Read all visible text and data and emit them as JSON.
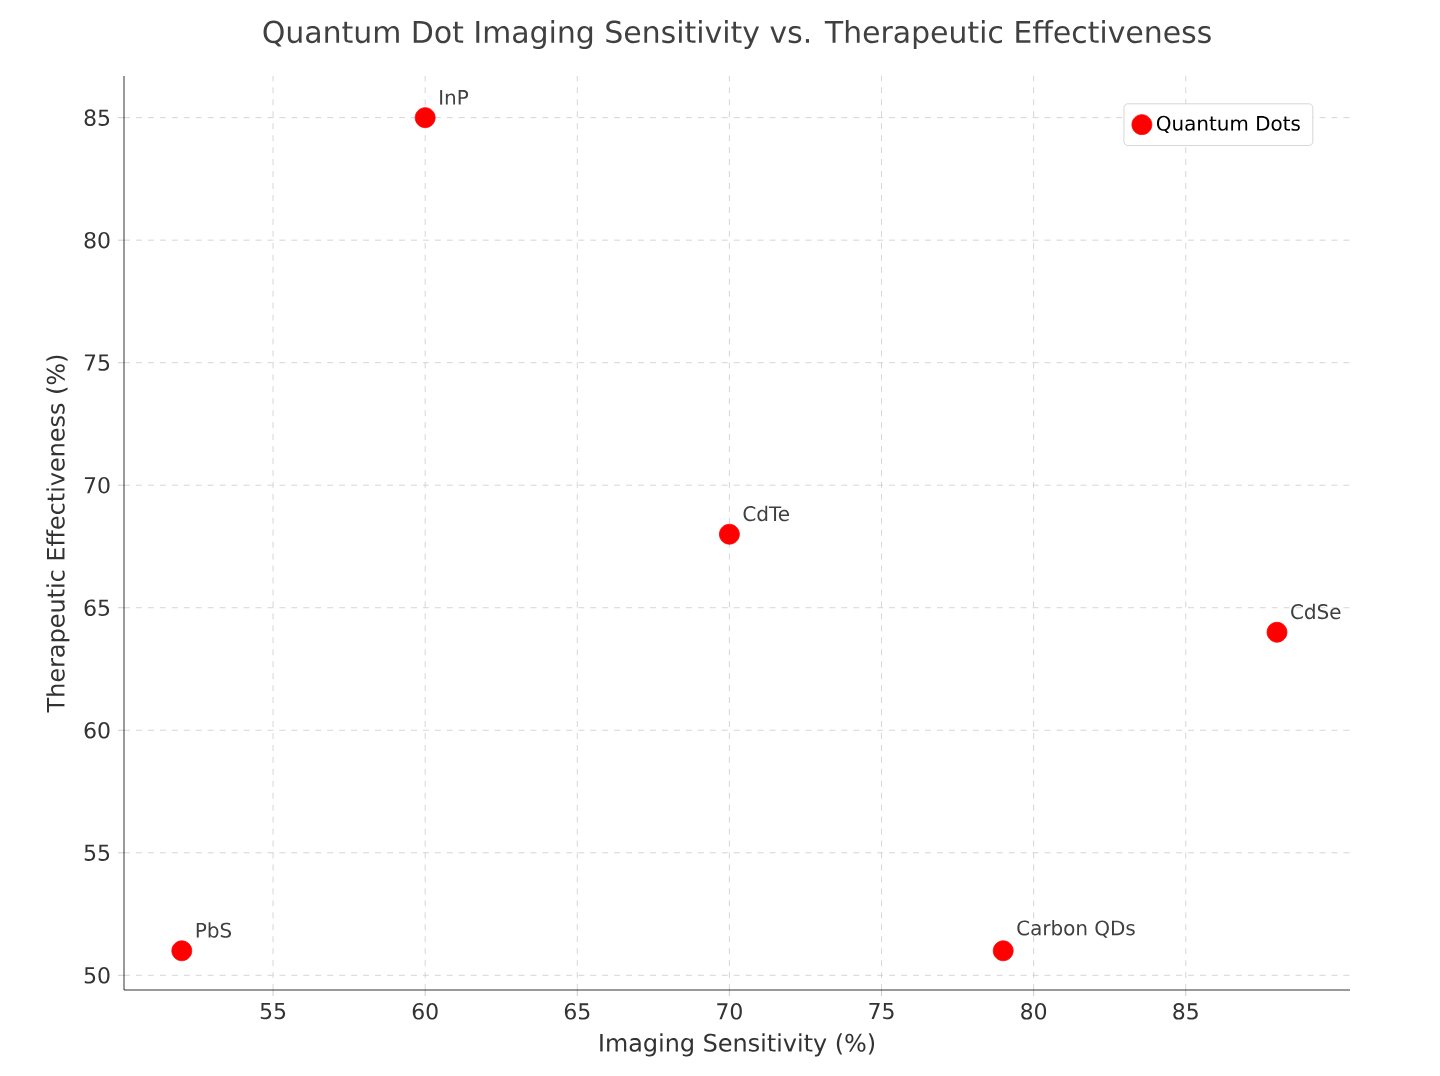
{
  "chart_data": {
    "type": "scatter",
    "title": "Quantum Dot Imaging Sensitivity vs. Therapeutic Effectiveness",
    "xlabel": "Imaging Sensitivity (%)",
    "ylabel": "Therapeutic Effectiveness (%)",
    "series": [
      {
        "name": "Quantum Dots",
        "color": "#ff0000",
        "x": [
          52,
          60,
          70,
          79,
          88
        ],
        "values": [
          51,
          85,
          68,
          51,
          64
        ]
      }
    ],
    "annotations": [
      {
        "text": "PbS",
        "x": 52,
        "y": 51
      },
      {
        "text": "InP",
        "x": 60,
        "y": 85
      },
      {
        "text": "CdTe",
        "x": 70,
        "y": 68
      },
      {
        "text": "Carbon QDs",
        "x": 79,
        "y": 51
      },
      {
        "text": "CdSe",
        "x": 88,
        "y": 64
      }
    ],
    "xlim": [
      50.1,
      90.4
    ],
    "ylim": [
      49.4,
      86.7
    ],
    "xticks": [
      55,
      60,
      65,
      70,
      75,
      80,
      85
    ],
    "yticks": [
      50,
      55,
      60,
      65,
      70,
      75,
      80,
      85
    ],
    "grid": true,
    "legend": "top right",
    "marker": "circle"
  }
}
